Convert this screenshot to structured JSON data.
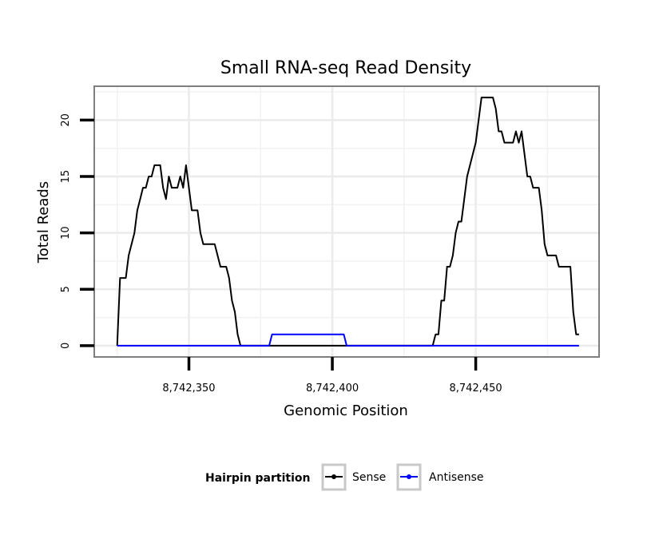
{
  "chart_data": {
    "type": "line",
    "title": "Small RNA-seq Read Density",
    "xlabel": "Genomic Position",
    "ylabel": "Total Reads",
    "xlim": [
      8742317,
      8742493
    ],
    "ylim": [
      -1,
      23
    ],
    "x_ticks": [
      8742350,
      8742400,
      8742450
    ],
    "x_tick_labels": [
      "8,742,350",
      "8,742,400",
      "8,742,450"
    ],
    "y_ticks": [
      0,
      5,
      10,
      15,
      20
    ],
    "y_tick_labels": [
      "0",
      "5",
      "10",
      "15",
      "20"
    ],
    "grid": true,
    "legend": {
      "title": "Hairpin partition",
      "position": "bottom",
      "entries": [
        "Sense",
        "Antisense"
      ]
    },
    "series": [
      {
        "name": "Sense",
        "color": "#000000",
        "points": [
          [
            8742325,
            0
          ],
          [
            8742326,
            6
          ],
          [
            8742328,
            6
          ],
          [
            8742329,
            8
          ],
          [
            8742330,
            9
          ],
          [
            8742331,
            10
          ],
          [
            8742332,
            12
          ],
          [
            8742333,
            13
          ],
          [
            8742334,
            14
          ],
          [
            8742335,
            14
          ],
          [
            8742336,
            15
          ],
          [
            8742337,
            15
          ],
          [
            8742338,
            16
          ],
          [
            8742340,
            16
          ],
          [
            8742341,
            14
          ],
          [
            8742342,
            13
          ],
          [
            8742343,
            15
          ],
          [
            8742344,
            14
          ],
          [
            8742346,
            14
          ],
          [
            8742347,
            15
          ],
          [
            8742348,
            14
          ],
          [
            8742349,
            16
          ],
          [
            8742350,
            14
          ],
          [
            8742351,
            12
          ],
          [
            8742353,
            12
          ],
          [
            8742354,
            10
          ],
          [
            8742355,
            9
          ],
          [
            8742359,
            9
          ],
          [
            8742360,
            8
          ],
          [
            8742361,
            7
          ],
          [
            8742363,
            7
          ],
          [
            8742364,
            6
          ],
          [
            8742365,
            4
          ],
          [
            8742366,
            3
          ],
          [
            8742367,
            1
          ],
          [
            8742368,
            0
          ],
          [
            8742435,
            0
          ],
          [
            8742436,
            1
          ],
          [
            8742437,
            1
          ],
          [
            8742438,
            4
          ],
          [
            8742439,
            4
          ],
          [
            8742440,
            7
          ],
          [
            8742441,
            7
          ],
          [
            8742442,
            8
          ],
          [
            8742443,
            10
          ],
          [
            8742444,
            11
          ],
          [
            8742445,
            11
          ],
          [
            8742446,
            13
          ],
          [
            8742447,
            15
          ],
          [
            8742448,
            16
          ],
          [
            8742449,
            17
          ],
          [
            8742450,
            18
          ],
          [
            8742451,
            20
          ],
          [
            8742452,
            22
          ],
          [
            8742456,
            22
          ],
          [
            8742457,
            21
          ],
          [
            8742458,
            19
          ],
          [
            8742459,
            19
          ],
          [
            8742460,
            18
          ],
          [
            8742463,
            18
          ],
          [
            8742464,
            19
          ],
          [
            8742465,
            18
          ],
          [
            8742466,
            19
          ],
          [
            8742467,
            17
          ],
          [
            8742468,
            15
          ],
          [
            8742469,
            15
          ],
          [
            8742470,
            14
          ],
          [
            8742472,
            14
          ],
          [
            8742473,
            12
          ],
          [
            8742474,
            9
          ],
          [
            8742475,
            8
          ],
          [
            8742478,
            8
          ],
          [
            8742479,
            7
          ],
          [
            8742483,
            7
          ],
          [
            8742484,
            3
          ],
          [
            8742485,
            1
          ],
          [
            8742486,
            1
          ]
        ]
      },
      {
        "name": "Antisense",
        "color": "#0000ff",
        "points": [
          [
            8742325,
            0
          ],
          [
            8742378,
            0
          ],
          [
            8742379,
            1
          ],
          [
            8742404,
            1
          ],
          [
            8742405,
            0
          ],
          [
            8742486,
            0
          ]
        ]
      }
    ]
  }
}
